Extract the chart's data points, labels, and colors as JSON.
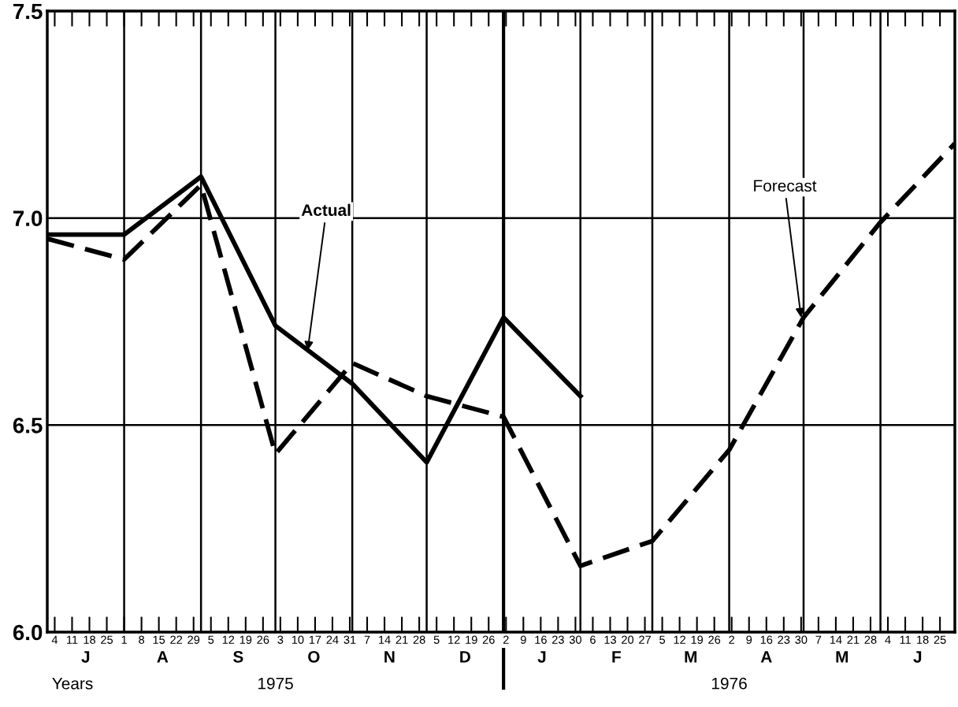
{
  "chart_data": {
    "type": "line",
    "x": [
      "1975-07-01",
      "1975-08-01",
      "1975-09-01",
      "1975-10-01",
      "1975-11-01",
      "1975-12-01",
      "1976-01-01",
      "1976-02-01",
      "1976-03-01",
      "1976-04-01",
      "1976-05-01",
      "1976-06-01",
      "1976-07-01"
    ],
    "series": [
      {
        "color": "#000000",
        "line_style": "solid",
        "values": [
          6.96,
          6.96,
          7.1,
          6.74,
          6.6,
          6.41,
          6.76,
          6.57,
          null,
          null,
          null,
          null,
          null
        ]
      },
      {
        "color": "#000000",
        "line_style": "dashed",
        "values": [
          6.95,
          6.9,
          7.08,
          6.43,
          6.65,
          6.57,
          6.52,
          6.16,
          6.22,
          6.44,
          6.76,
          6.99,
          7.18
        ]
      }
    ],
    "xlim": [
      "1975-07-01",
      "1976-07-01"
    ],
    "xticks": [
      {
        "value": "1975-07-04",
        "label": "4"
      },
      {
        "value": "1975-07-11",
        "label": "11"
      },
      {
        "value": "1975-07-18",
        "label": "18"
      },
      {
        "value": "1975-07-25",
        "label": "25"
      },
      {
        "value": "1975-08-01",
        "label": "1"
      },
      {
        "value": "1975-08-08",
        "label": "8"
      },
      {
        "value": "1975-08-15",
        "label": "15"
      },
      {
        "value": "1975-08-22",
        "label": "22"
      },
      {
        "value": "1975-08-29",
        "label": "29"
      },
      {
        "value": "1975-09-05",
        "label": "5"
      },
      {
        "value": "1975-09-12",
        "label": "12"
      },
      {
        "value": "1975-09-19",
        "label": "19"
      },
      {
        "value": "1975-09-26",
        "label": "26"
      },
      {
        "value": "1975-10-03",
        "label": "3"
      },
      {
        "value": "1975-10-10",
        "label": "10"
      },
      {
        "value": "1975-10-17",
        "label": "17"
      },
      {
        "value": "1975-10-24",
        "label": "24"
      },
      {
        "value": "1975-10-31",
        "label": "31"
      },
      {
        "value": "1975-11-07",
        "label": "7"
      },
      {
        "value": "1975-11-14",
        "label": "14"
      },
      {
        "value": "1975-11-21",
        "label": "21"
      },
      {
        "value": "1975-11-28",
        "label": "28"
      },
      {
        "value": "1975-12-05",
        "label": "5"
      },
      {
        "value": "1975-12-12",
        "label": "12"
      },
      {
        "value": "1975-12-19",
        "label": "19"
      },
      {
        "value": "1975-12-26",
        "label": "26"
      },
      {
        "value": "1976-01-02",
        "label": "2"
      },
      {
        "value": "1976-01-09",
        "label": "9"
      },
      {
        "value": "1976-01-16",
        "label": "16"
      },
      {
        "value": "1976-01-23",
        "label": "23"
      },
      {
        "value": "1976-01-30",
        "label": "30"
      },
      {
        "value": "1976-02-06",
        "label": "6"
      },
      {
        "value": "1976-02-13",
        "label": "13"
      },
      {
        "value": "1976-02-20",
        "label": "20"
      },
      {
        "value": "1976-02-27",
        "label": "27"
      },
      {
        "value": "1976-03-05",
        "label": "5"
      },
      {
        "value": "1976-03-12",
        "label": "12"
      },
      {
        "value": "1976-03-19",
        "label": "19"
      },
      {
        "value": "1976-03-26",
        "label": "26"
      },
      {
        "value": "1976-04-02",
        "label": "2"
      },
      {
        "value": "1976-04-09",
        "label": "9"
      },
      {
        "value": "1976-04-16",
        "label": "16"
      },
      {
        "value": "1976-04-23",
        "label": "23"
      },
      {
        "value": "1976-04-30",
        "label": "30"
      },
      {
        "value": "1976-05-07",
        "label": "7"
      },
      {
        "value": "1976-05-14",
        "label": "14"
      },
      {
        "value": "1976-05-21",
        "label": "21"
      },
      {
        "value": "1976-05-28",
        "label": "28"
      },
      {
        "value": "1976-06-04",
        "label": "4"
      },
      {
        "value": "1976-06-11",
        "label": "11"
      },
      {
        "value": "1976-06-18",
        "label": "18"
      },
      {
        "value": "1976-06-25",
        "label": "25"
      }
    ],
    "ylim": [
      6.0,
      7.5
    ],
    "yticks": [
      {
        "value": 6.0,
        "label": "6.0"
      },
      {
        "value": 6.5,
        "label": "6.5"
      },
      {
        "value": 7.0,
        "label": "7.0"
      },
      {
        "value": 7.5,
        "label": "7.5"
      }
    ],
    "grid": "y",
    "ref_lines": [
      {
        "axis": "x",
        "value": "1975-08-01"
      },
      {
        "axis": "x",
        "value": "1975-09-01"
      },
      {
        "axis": "x",
        "value": "1975-10-01"
      },
      {
        "axis": "x",
        "value": "1975-11-01"
      },
      {
        "axis": "x",
        "value": "1975-12-01"
      },
      {
        "axis": "x",
        "value": "1976-01-01"
      },
      {
        "axis": "x",
        "value": "1976-02-01"
      },
      {
        "axis": "x",
        "value": "1976-03-01"
      },
      {
        "axis": "x",
        "value": "1976-04-01"
      },
      {
        "axis": "x",
        "value": "1976-05-01"
      },
      {
        "axis": "x",
        "value": "1976-06-01"
      }
    ],
    "annotations": [
      {
        "text": "Actual",
        "x": "1975-10-14",
        "y": 6.68
      },
      {
        "text": "Forecast",
        "x": "1976-04-30",
        "y": 6.76
      },
      "J",
      "A",
      "S",
      "O",
      "N",
      "D",
      "J",
      "F",
      "M",
      "A",
      "M",
      "J",
      "Years",
      "1975",
      "1976"
    ]
  }
}
